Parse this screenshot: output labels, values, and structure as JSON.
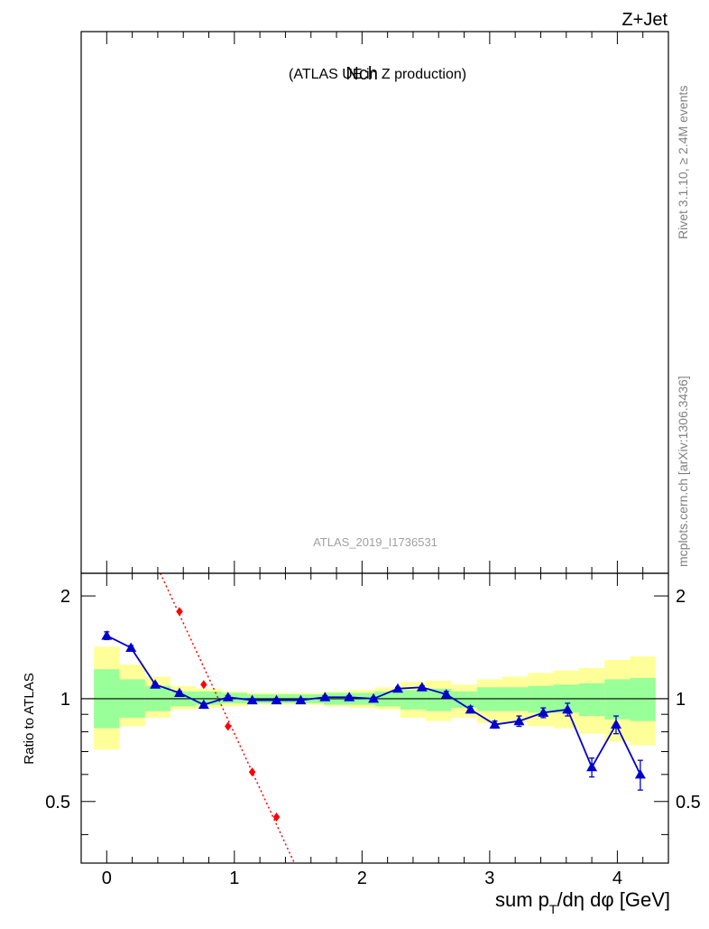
{
  "header": {
    "process": "Z+Jet",
    "title_main": "Nch",
    "title_sub": "(ATLAS UE in Z production)",
    "analysis_id": "ATLAS_2019_I1736531"
  },
  "side_labels": {
    "rivet": "Rivet 3.1.10, ≥ 2.4M events",
    "source": "mcplots.cern.ch [arXiv:1306.3436]"
  },
  "ratio_panel": {
    "ylabel": "Ratio to ATLAS",
    "xlabel_parts": {
      "pre": "sum p",
      "sub": "T",
      "post": "/dη dφ [GeV]"
    }
  },
  "colors": {
    "band_inner": "#99ff99",
    "band_outer": "#ffff99",
    "mc_line": "#0000cc",
    "mc_marker": "#0000cc",
    "ref_line": "#ff0000",
    "ref_marker": "#ff0000",
    "unity_line": "#000000"
  },
  "chart_data": {
    "type": "line",
    "xlim": [
      -0.2,
      4.4
    ],
    "ylim": [
      0.33,
      2.33
    ],
    "yscale": "log",
    "xticks": [
      0,
      1,
      2,
      3,
      4
    ],
    "xtick_labels": [
      "0",
      "1",
      "2",
      "3",
      "4"
    ],
    "yticks": [
      0.5,
      1,
      2
    ],
    "ytick_labels": [
      "0.5",
      "1",
      "2"
    ],
    "bins": [
      {
        "lo": -0.1,
        "hi": 0.1,
        "inner": [
          0.82,
          1.22
        ],
        "outer": [
          0.71,
          1.42
        ]
      },
      {
        "lo": 0.1,
        "hi": 0.3,
        "inner": [
          0.88,
          1.14
        ],
        "outer": [
          0.83,
          1.26
        ]
      },
      {
        "lo": 0.3,
        "hi": 0.5,
        "inner": [
          0.92,
          1.09
        ],
        "outer": [
          0.88,
          1.16
        ]
      },
      {
        "lo": 0.5,
        "hi": 0.7,
        "inner": [
          0.95,
          1.05
        ],
        "outer": [
          0.93,
          1.09
        ]
      },
      {
        "lo": 0.7,
        "hi": 0.9,
        "inner": [
          0.96,
          1.05
        ],
        "outer": [
          0.94,
          1.07
        ]
      },
      {
        "lo": 0.9,
        "hi": 1.1,
        "inner": [
          0.97,
          1.04
        ],
        "outer": [
          0.95,
          1.05
        ]
      },
      {
        "lo": 1.1,
        "hi": 1.3,
        "inner": [
          0.97,
          1.03
        ],
        "outer": [
          0.96,
          1.04
        ]
      },
      {
        "lo": 1.3,
        "hi": 1.5,
        "inner": [
          0.97,
          1.03
        ],
        "outer": [
          0.96,
          1.04
        ]
      },
      {
        "lo": 1.5,
        "hi": 1.7,
        "inner": [
          0.97,
          1.03
        ],
        "outer": [
          0.96,
          1.04
        ]
      },
      {
        "lo": 1.7,
        "hi": 1.9,
        "inner": [
          0.96,
          1.04
        ],
        "outer": [
          0.95,
          1.05
        ]
      },
      {
        "lo": 1.9,
        "hi": 2.1,
        "inner": [
          0.96,
          1.04
        ],
        "outer": [
          0.94,
          1.06
        ]
      },
      {
        "lo": 2.1,
        "hi": 2.3,
        "inner": [
          0.95,
          1.05
        ],
        "outer": [
          0.93,
          1.08
        ]
      },
      {
        "lo": 2.3,
        "hi": 2.5,
        "inner": [
          0.93,
          1.06
        ],
        "outer": [
          0.88,
          1.12
        ]
      },
      {
        "lo": 2.5,
        "hi": 2.7,
        "inner": [
          0.92,
          1.07
        ],
        "outer": [
          0.86,
          1.13
        ]
      },
      {
        "lo": 2.7,
        "hi": 2.9,
        "inner": [
          0.94,
          1.05
        ],
        "outer": [
          0.88,
          1.1
        ]
      },
      {
        "lo": 2.9,
        "hi": 3.1,
        "inner": [
          0.92,
          1.08
        ],
        "outer": [
          0.85,
          1.14
        ]
      },
      {
        "lo": 3.1,
        "hi": 3.3,
        "inner": [
          0.92,
          1.08
        ],
        "outer": [
          0.85,
          1.16
        ]
      },
      {
        "lo": 3.3,
        "hi": 3.5,
        "inner": [
          0.91,
          1.09
        ],
        "outer": [
          0.83,
          1.19
        ]
      },
      {
        "lo": 3.5,
        "hi": 3.7,
        "inner": [
          0.91,
          1.1
        ],
        "outer": [
          0.82,
          1.21
        ]
      },
      {
        "lo": 3.7,
        "hi": 3.9,
        "inner": [
          0.89,
          1.11
        ],
        "outer": [
          0.79,
          1.23
        ]
      },
      {
        "lo": 3.9,
        "hi": 4.1,
        "inner": [
          0.87,
          1.14
        ],
        "outer": [
          0.75,
          1.3
        ]
      },
      {
        "lo": 4.1,
        "hi": 4.3,
        "inner": [
          0.86,
          1.15
        ],
        "outer": [
          0.73,
          1.33
        ]
      }
    ],
    "series": [
      {
        "marker": "triangle",
        "points": [
          {
            "x": 0.0,
            "y": 1.53,
            "err": 0.04
          },
          {
            "x": 0.19,
            "y": 1.41,
            "err": 0.02
          },
          {
            "x": 0.38,
            "y": 1.1,
            "err": 0.01
          },
          {
            "x": 0.57,
            "y": 1.04,
            "err": 0.01
          },
          {
            "x": 0.76,
            "y": 0.96,
            "err": 0.01
          },
          {
            "x": 0.95,
            "y": 1.01,
            "err": 0.01
          },
          {
            "x": 1.14,
            "y": 0.99,
            "err": 0.01
          },
          {
            "x": 1.33,
            "y": 0.99,
            "err": 0.01
          },
          {
            "x": 1.52,
            "y": 0.99,
            "err": 0.01
          },
          {
            "x": 1.71,
            "y": 1.01,
            "err": 0.01
          },
          {
            "x": 1.9,
            "y": 1.01,
            "err": 0.01
          },
          {
            "x": 2.09,
            "y": 1.0,
            "err": 0.01
          },
          {
            "x": 2.28,
            "y": 1.07,
            "err": 0.01
          },
          {
            "x": 2.47,
            "y": 1.08,
            "err": 0.01
          },
          {
            "x": 2.66,
            "y": 1.03,
            "err": 0.02
          },
          {
            "x": 2.85,
            "y": 0.93,
            "err": 0.02
          },
          {
            "x": 3.04,
            "y": 0.84,
            "err": 0.02
          },
          {
            "x": 3.23,
            "y": 0.86,
            "err": 0.03
          },
          {
            "x": 3.42,
            "y": 0.91,
            "err": 0.03
          },
          {
            "x": 3.61,
            "y": 0.93,
            "err": 0.04
          },
          {
            "x": 3.8,
            "y": 0.63,
            "err": 0.04
          },
          {
            "x": 3.99,
            "y": 0.84,
            "err": 0.05
          },
          {
            "x": 4.18,
            "y": 0.6,
            "err": 0.06
          }
        ]
      },
      {
        "marker": "diamond",
        "dashed": true,
        "points": [
          {
            "x": 0.57,
            "y": 1.8
          },
          {
            "x": 0.76,
            "y": 1.1
          },
          {
            "x": 0.95,
            "y": 0.83
          },
          {
            "x": 1.14,
            "y": 0.61
          },
          {
            "x": 1.33,
            "y": 0.45
          }
        ],
        "line_extent": [
          {
            "x": 0.42,
            "y": 2.33
          },
          {
            "x": 1.47,
            "y": 0.33
          }
        ]
      }
    ]
  }
}
